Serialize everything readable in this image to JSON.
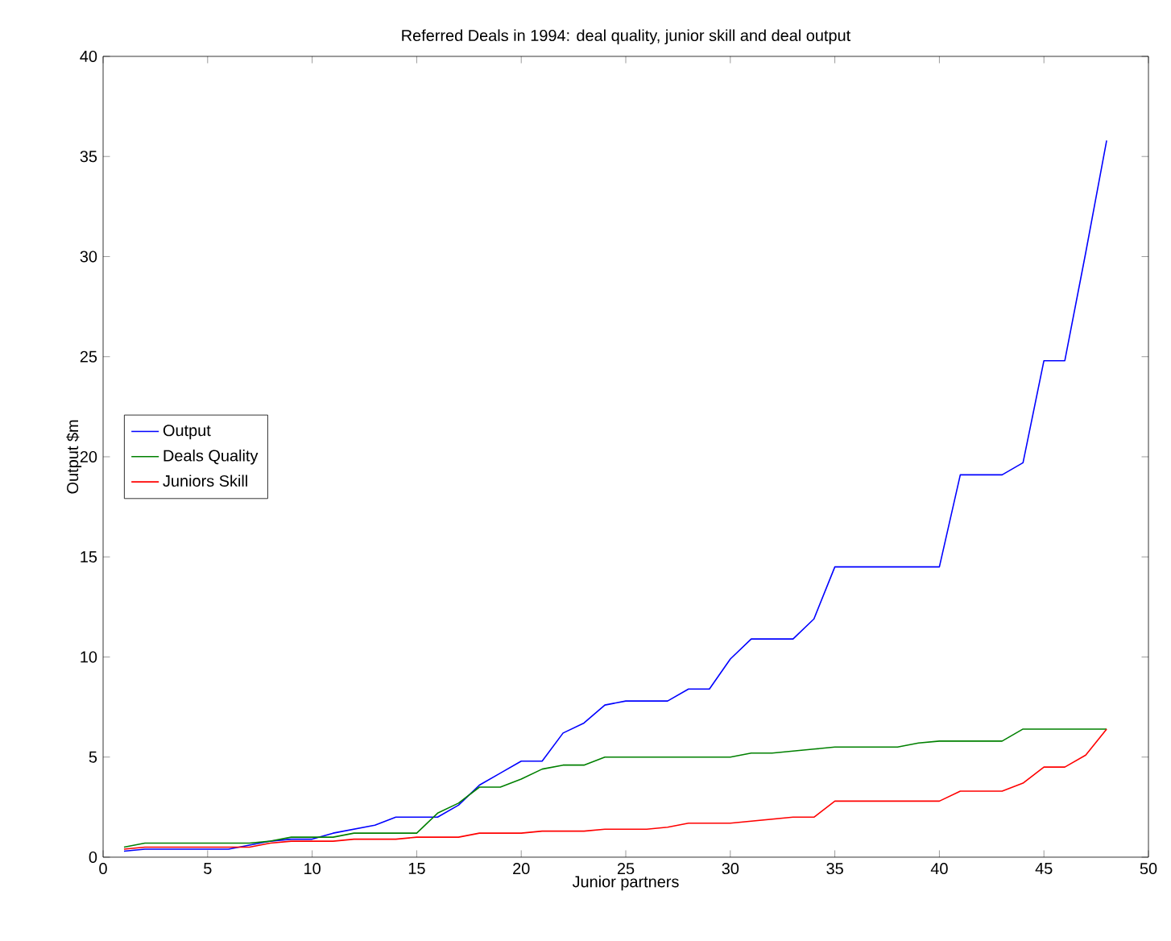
{
  "chart_data": {
    "type": "line",
    "title": "Referred Deals in 1994: deal quality, junior skill and deal output",
    "xlabel": "Junior partners",
    "ylabel": "Output $m",
    "x": [
      1,
      2,
      3,
      4,
      5,
      6,
      7,
      8,
      9,
      10,
      11,
      12,
      13,
      14,
      15,
      16,
      17,
      18,
      19,
      20,
      21,
      22,
      23,
      24,
      25,
      26,
      27,
      28,
      29,
      30,
      31,
      32,
      33,
      34,
      35,
      36,
      37,
      38,
      39,
      40,
      41,
      42,
      43,
      44,
      45,
      46,
      47,
      48
    ],
    "series": [
      {
        "name": "Output",
        "color": "#0000ff",
        "values": [
          0.3,
          0.4,
          0.4,
          0.4,
          0.4,
          0.4,
          0.6,
          0.8,
          0.9,
          0.9,
          1.2,
          1.4,
          1.6,
          2.0,
          2.0,
          2.0,
          2.6,
          3.6,
          4.2,
          4.8,
          4.8,
          6.2,
          6.7,
          7.6,
          7.8,
          7.8,
          7.8,
          8.4,
          8.4,
          9.9,
          10.9,
          10.9,
          10.9,
          11.9,
          14.5,
          14.5,
          14.5,
          14.5,
          14.5,
          14.5,
          19.1,
          19.1,
          19.1,
          19.7,
          24.8,
          24.8,
          30.2,
          35.8
        ]
      },
      {
        "name": "Deals Quality",
        "color": "#008000",
        "values": [
          0.5,
          0.7,
          0.7,
          0.7,
          0.7,
          0.7,
          0.7,
          0.8,
          1.0,
          1.0,
          1.0,
          1.2,
          1.2,
          1.2,
          1.2,
          2.2,
          2.7,
          3.5,
          3.5,
          3.9,
          4.4,
          4.6,
          4.6,
          5.0,
          5.0,
          5.0,
          5.0,
          5.0,
          5.0,
          5.0,
          5.2,
          5.2,
          5.3,
          5.4,
          5.5,
          5.5,
          5.5,
          5.5,
          5.7,
          5.8,
          5.8,
          5.8,
          5.8,
          6.4,
          6.4,
          6.4,
          6.4,
          6.4
        ]
      },
      {
        "name": "Juniors Skill",
        "color": "#ff0000",
        "values": [
          0.4,
          0.5,
          0.5,
          0.5,
          0.5,
          0.5,
          0.5,
          0.7,
          0.8,
          0.8,
          0.8,
          0.9,
          0.9,
          0.9,
          1.0,
          1.0,
          1.0,
          1.2,
          1.2,
          1.2,
          1.3,
          1.3,
          1.3,
          1.4,
          1.4,
          1.4,
          1.5,
          1.7,
          1.7,
          1.7,
          1.8,
          1.9,
          2.0,
          2.0,
          2.8,
          2.8,
          2.8,
          2.8,
          2.8,
          2.8,
          3.3,
          3.3,
          3.3,
          3.7,
          4.5,
          4.5,
          5.1,
          6.4
        ]
      }
    ],
    "xlim": [
      0,
      50
    ],
    "xticks": [
      0,
      5,
      10,
      15,
      20,
      25,
      30,
      35,
      40,
      45,
      50
    ],
    "ylim": [
      0,
      40
    ],
    "yticks": [
      0,
      5,
      10,
      15,
      20,
      25,
      30,
      35,
      40
    ],
    "legend": "left",
    "grid": false,
    "marker": "none",
    "line_style": "solid"
  }
}
